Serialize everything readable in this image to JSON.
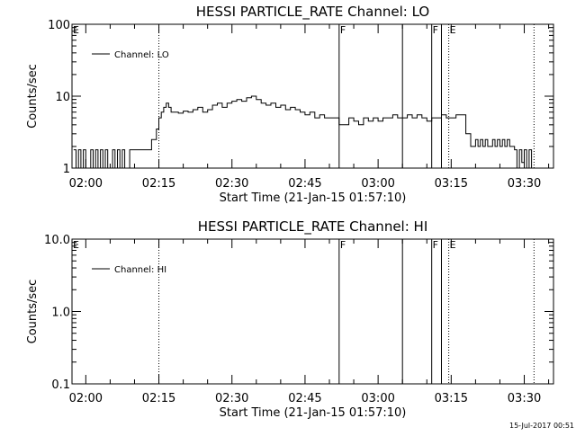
{
  "footer": {
    "date_stamp": "15-Jul-2017 00:51"
  },
  "chart_data": [
    {
      "type": "line",
      "title": "HESSI PARTICLE_RATE Channel: LO",
      "xlabel": "Start Time (21-Jan-15 01:57:10)",
      "ylabel": "Counts/sec",
      "y_scale": "log",
      "ylim": [
        1,
        100
      ],
      "y_tick_labels": [
        "1",
        "10",
        "100"
      ],
      "y_tick_values": [
        1,
        10,
        100
      ],
      "xlim": [
        "01:57:10",
        "03:36:00"
      ],
      "x_tick_labels": [
        "02:00",
        "02:15",
        "02:30",
        "02:45",
        "03:00",
        "03:15",
        "03:30"
      ],
      "legend": {
        "position": "top-left",
        "entries": [
          "Channel: LO"
        ]
      },
      "grid": false,
      "markers": [
        {
          "time": "02:15:00",
          "label": "",
          "style": "dotted"
        },
        {
          "time": "02:52:00",
          "label": "F",
          "style": "solid"
        },
        {
          "time": "03:05:00",
          "label": "",
          "style": "solid"
        },
        {
          "time": "03:11:00",
          "label": "F",
          "style": "solid"
        },
        {
          "time": "03:13:00",
          "label": "",
          "style": "solid"
        },
        {
          "time": "03:14:30",
          "label": "E",
          "style": "dotted"
        },
        {
          "time": "03:32:00",
          "label": "",
          "style": "dotted"
        }
      ],
      "start_marker_label": "E",
      "series": [
        {
          "name": "Channel: LO",
          "x": [
            "01:57:30",
            "01:58:00",
            "01:58:30",
            "01:59:00",
            "01:59:30",
            "02:00:00",
            "02:00:30",
            "02:01:00",
            "02:01:30",
            "02:02:00",
            "02:02:30",
            "02:03:00",
            "02:03:30",
            "02:04:00",
            "02:04:30",
            "02:05:00",
            "02:05:30",
            "02:06:00",
            "02:06:30",
            "02:07:00",
            "02:07:30",
            "02:08:00",
            "02:08:30",
            "02:09:00",
            "02:09:30",
            "02:10:00",
            "02:10:30",
            "02:11:00",
            "02:11:30",
            "02:12:00",
            "02:12:30",
            "02:13:00",
            "02:13:30",
            "02:14:00",
            "02:14:30",
            "02:15:00",
            "02:15:30",
            "02:16:00",
            "02:16:30",
            "02:17:00",
            "02:17:30",
            "02:18:00",
            "02:19:00",
            "02:20:00",
            "02:21:00",
            "02:22:00",
            "02:23:00",
            "02:24:00",
            "02:25:00",
            "02:26:00",
            "02:27:00",
            "02:28:00",
            "02:29:00",
            "02:30:00",
            "02:31:00",
            "02:32:00",
            "02:33:00",
            "02:34:00",
            "02:35:00",
            "02:36:00",
            "02:37:00",
            "02:38:00",
            "02:39:00",
            "02:40:00",
            "02:41:00",
            "02:42:00",
            "02:43:00",
            "02:44:00",
            "02:45:00",
            "02:46:00",
            "02:47:00",
            "02:48:00",
            "02:49:00",
            "02:50:00",
            "02:51:00",
            "02:52:00",
            "02:53:00",
            "02:54:00",
            "02:55:00",
            "02:56:00",
            "02:57:00",
            "02:58:00",
            "02:59:00",
            "03:00:00",
            "03:01:00",
            "03:02:00",
            "03:03:00",
            "03:04:00",
            "03:05:00",
            "03:06:00",
            "03:07:00",
            "03:08:00",
            "03:09:00",
            "03:10:00",
            "03:11:00",
            "03:12:00",
            "03:13:00",
            "03:14:00",
            "03:15:00",
            "03:16:00",
            "03:17:00",
            "03:18:00",
            "03:19:00",
            "03:19:30",
            "03:20:00",
            "03:20:30",
            "03:21:00",
            "03:21:30",
            "03:22:00",
            "03:22:30",
            "03:23:00",
            "03:23:30",
            "03:24:00",
            "03:24:30",
            "03:25:00",
            "03:25:30",
            "03:26:00",
            "03:26:30",
            "03:27:00",
            "03:27:30",
            "03:28:00",
            "03:28:30",
            "03:29:00",
            "03:29:30",
            "03:30:00",
            "03:30:30",
            "03:31:00",
            "03:31:30"
          ],
          "values": [
            1.8,
            1,
            1.8,
            1,
            1.8,
            1,
            1,
            1.8,
            1,
            1.8,
            1,
            1.8,
            1,
            1.8,
            1,
            1,
            1.8,
            1,
            1.8,
            1,
            1.8,
            1,
            1,
            1.8,
            1.8,
            1.8,
            1.8,
            1.8,
            1.8,
            1.8,
            1.8,
            1.8,
            2.5,
            2.5,
            3.5,
            5,
            6,
            7,
            8,
            7,
            6,
            6,
            5.8,
            6.2,
            6,
            6.5,
            7,
            6,
            6.5,
            7.5,
            8,
            7,
            8,
            8.5,
            9,
            8.5,
            9.5,
            10,
            9,
            8,
            7.5,
            8,
            7,
            7.5,
            6.5,
            7,
            6.5,
            6,
            5.5,
            6,
            5,
            5.5,
            5,
            5,
            5,
            4,
            4,
            5,
            4.5,
            4,
            5,
            4.5,
            5,
            4.5,
            5,
            5,
            5.5,
            5,
            5,
            5.5,
            5,
            5.5,
            5,
            4.5,
            5,
            5,
            5.5,
            5,
            5,
            5.5,
            5.5,
            3,
            2,
            2,
            2.5,
            2,
            2.5,
            2,
            2.5,
            2,
            2,
            2.5,
            2,
            2.5,
            2,
            2.5,
            2,
            2.5,
            2,
            2,
            1.8,
            1,
            1.8,
            1.2,
            1.8,
            1,
            1.8,
            1
          ]
        }
      ]
    },
    {
      "type": "line",
      "title": "HESSI PARTICLE_RATE Channel: HI",
      "xlabel": "Start Time (21-Jan-15 01:57:10)",
      "ylabel": "Counts/sec",
      "y_scale": "log",
      "ylim": [
        0.1,
        10
      ],
      "y_tick_labels": [
        "0.1",
        "1.0",
        "10.0"
      ],
      "y_tick_values": [
        0.1,
        1,
        10
      ],
      "xlim": [
        "01:57:10",
        "03:36:00"
      ],
      "x_tick_labels": [
        "02:00",
        "02:15",
        "02:30",
        "02:45",
        "03:00",
        "03:15",
        "03:30"
      ],
      "legend": {
        "position": "top-left",
        "entries": [
          "Channel: HI"
        ]
      },
      "grid": false,
      "markers": [
        {
          "time": "02:15:00",
          "label": "",
          "style": "dotted"
        },
        {
          "time": "02:52:00",
          "label": "F",
          "style": "solid"
        },
        {
          "time": "03:05:00",
          "label": "",
          "style": "solid"
        },
        {
          "time": "03:11:00",
          "label": "F",
          "style": "solid"
        },
        {
          "time": "03:13:00",
          "label": "",
          "style": "solid"
        },
        {
          "time": "03:14:30",
          "label": "E",
          "style": "dotted"
        },
        {
          "time": "03:32:00",
          "label": "",
          "style": "dotted"
        }
      ],
      "start_marker_label": "E",
      "series": [
        {
          "name": "Channel: HI",
          "x": [],
          "values": []
        }
      ]
    }
  ]
}
